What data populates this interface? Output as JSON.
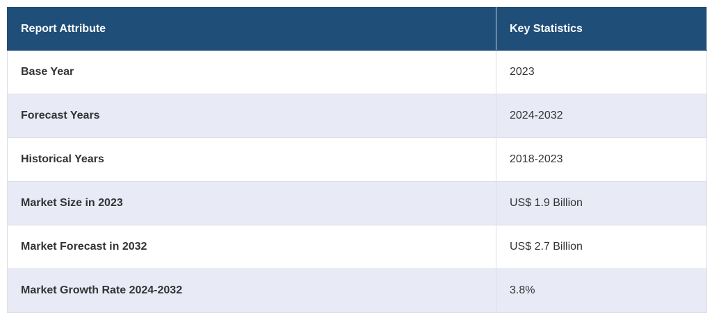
{
  "table": {
    "header": [
      "Report Attribute",
      "Key Statistics"
    ],
    "rows": [
      [
        "Base Year",
        "2023"
      ],
      [
        "Forecast Years",
        "2024-2032"
      ],
      [
        "Historical Years",
        "2018-2023"
      ],
      [
        "Market Size in 2023",
        "US$ 1.9 Billion"
      ],
      [
        "Market Forecast in 2032",
        "US$ 2.7 Billion"
      ],
      [
        "Market Growth Rate 2024-2032",
        "3.8%"
      ]
    ]
  }
}
